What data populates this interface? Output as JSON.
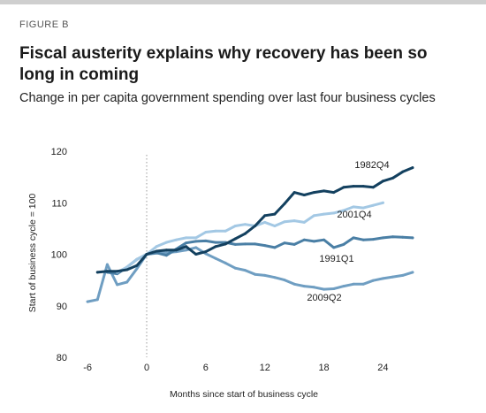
{
  "figure_label": "FIGURE B",
  "title": "Fiscal austerity explains why recovery has been so long in coming",
  "subtitle": "Change in per capita government spending over last four business cycles",
  "chart_data": {
    "type": "line",
    "xlabel": "Months since start of business cycle",
    "ylabel": "Start of business cycle = 100",
    "xlim": [
      -7,
      28
    ],
    "ylim": [
      80,
      120
    ],
    "xticks": [
      "-6",
      "0",
      "6",
      "12",
      "18",
      "24"
    ],
    "yticks": [
      "80",
      "90",
      "100",
      "110",
      "120"
    ],
    "grid": "none",
    "reference_line_x": 0,
    "series": [
      {
        "name": "1982Q4",
        "color": "#13405f",
        "x": [
          -5,
          -4,
          -3,
          -2,
          -1,
          0,
          1,
          2,
          3,
          4,
          5,
          6,
          7,
          8,
          9,
          10,
          11,
          12,
          13,
          14,
          15,
          16,
          17,
          18,
          19,
          20,
          21,
          22,
          23,
          24,
          25,
          26,
          27
        ],
        "y": [
          96.5,
          96.7,
          96.7,
          97,
          97.8,
          100,
          100.6,
          100.8,
          100.8,
          101.5,
          100,
          100.5,
          101.5,
          102,
          103,
          104,
          105.5,
          107.5,
          107.8,
          109.8,
          112,
          111.5,
          112,
          112.3,
          112,
          113,
          113.2,
          113.2,
          113,
          114.2,
          114.8,
          116,
          116.8
        ]
      },
      {
        "name": "2001Q4",
        "color": "#a3c8e4",
        "x": [
          -3,
          -2,
          -1,
          0,
          1,
          2,
          3,
          4,
          5,
          6,
          7,
          8,
          9,
          10,
          11,
          12,
          13,
          14,
          15,
          16,
          17,
          18,
          19,
          20,
          21,
          22,
          23,
          24
        ],
        "y": [
          96.5,
          97.5,
          99,
          100,
          101.5,
          102.3,
          102.8,
          103.2,
          103.2,
          104.3,
          104.5,
          104.5,
          105.5,
          105.8,
          105.5,
          106.2,
          105.5,
          106.3,
          106.5,
          106.2,
          107.5,
          107.8,
          108,
          108.5,
          109.2,
          109,
          109.5,
          110
        ]
      },
      {
        "name": "1991Q1",
        "color": "#4a7fa5",
        "x": [
          -4,
          -3,
          -2,
          -1,
          0,
          1,
          2,
          3,
          4,
          5,
          6,
          7,
          8,
          9,
          10,
          11,
          12,
          13,
          14,
          15,
          16,
          17,
          18,
          19,
          20,
          21,
          22,
          23,
          24,
          25,
          26,
          27
        ],
        "y": [
          96.5,
          96.2,
          97.5,
          99,
          100,
          100.3,
          99.8,
          101,
          102.2,
          102.5,
          102.6,
          102.3,
          102.3,
          101.9,
          102,
          102,
          101.7,
          101.3,
          102.2,
          101.9,
          102.8,
          102.5,
          102.8,
          101.3,
          101.9,
          103.2,
          102.8,
          102.9,
          103.2,
          103.4,
          103.3,
          103.2
        ]
      },
      {
        "name": "2009Q2",
        "color": "#6f9ec2",
        "x": [
          -6,
          -5,
          -4,
          -3,
          -2,
          -1,
          0,
          1,
          2,
          3,
          4,
          5,
          6,
          7,
          8,
          9,
          10,
          11,
          12,
          13,
          14,
          15,
          16,
          17,
          18,
          19,
          20,
          21,
          22,
          23,
          24,
          25,
          26,
          27
        ],
        "y": [
          90.8,
          91.2,
          98,
          94.1,
          94.6,
          97.2,
          100,
          100.2,
          100.3,
          100.5,
          100.8,
          101.3,
          100.1,
          99.2,
          98.3,
          97.3,
          96.9,
          96.1,
          95.9,
          95.5,
          95,
          94.2,
          93.8,
          93.6,
          93.2,
          93.3,
          93.8,
          94.2,
          94.2,
          94.9,
          95.3,
          95.6,
          95.9,
          96.5
        ]
      }
    ]
  }
}
